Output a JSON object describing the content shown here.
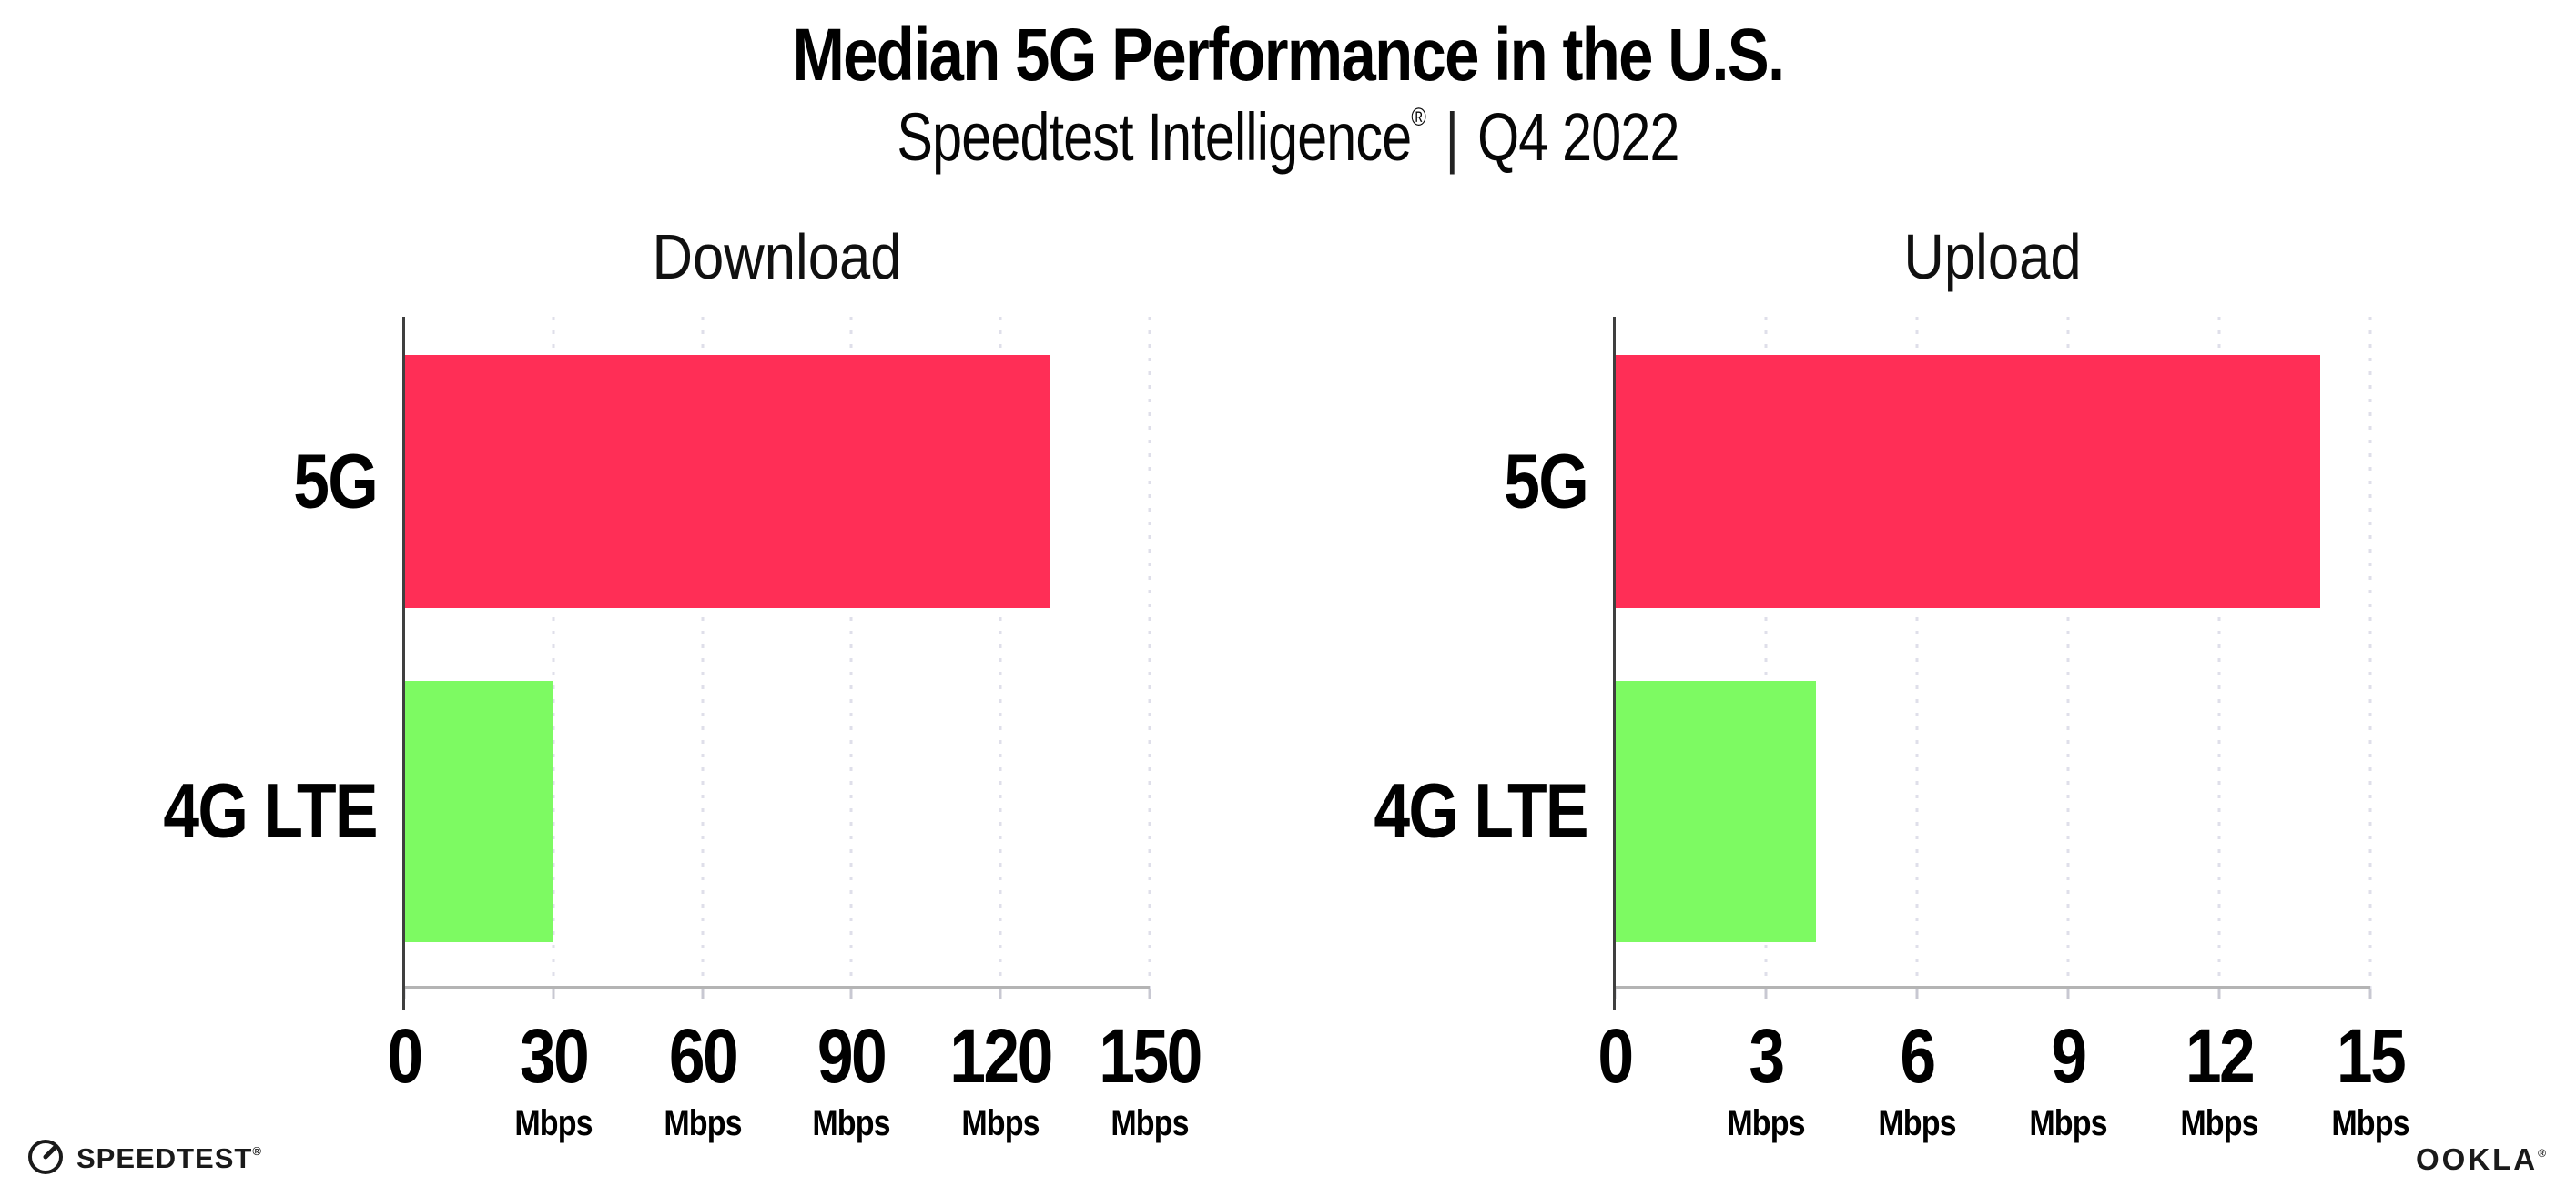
{
  "page": {
    "title": "Median 5G Performance in the U.S.",
    "subtitle": {
      "brand": "Speedtest Intelligence",
      "reg": "®",
      "separator": "|",
      "period": "Q4 2022"
    }
  },
  "chart_data": [
    {
      "type": "bar",
      "orientation": "horizontal",
      "title": "Download",
      "categories": [
        "5G",
        "4G LTE"
      ],
      "values": [
        130,
        30
      ],
      "unit": "Mbps",
      "xlim": [
        0,
        150
      ],
      "xticks": [
        0,
        30,
        60,
        90,
        120,
        150
      ],
      "bar_colors": [
        "#ff2e56",
        "#7dfa62"
      ],
      "grid": "dotted vertical gridlines at each tick",
      "legend": "none"
    },
    {
      "type": "bar",
      "orientation": "horizontal",
      "title": "Upload",
      "categories": [
        "5G",
        "4G LTE"
      ],
      "values": [
        14,
        4
      ],
      "unit": "Mbps",
      "xlim": [
        0,
        15
      ],
      "xticks": [
        0,
        3,
        6,
        9,
        12,
        15
      ],
      "bar_colors": [
        "#ff2e56",
        "#7dfa62"
      ],
      "grid": "dotted vertical gridlines at each tick",
      "legend": "none"
    }
  ],
  "footer": {
    "speedtest_logo_text": "SPEEDTEST",
    "speedtest_logo_mark": "®",
    "ookla_logo_text": "OOKLA",
    "ookla_logo_mark": "®"
  },
  "colors": {
    "bar_5g": "#ff2e56",
    "bar_4g_lte": "#7dfa62",
    "gridline": "#dfdfea",
    "axis_bottom": "#b4b4b4",
    "axis_left": "#3f3f3f",
    "text": "#000000"
  }
}
